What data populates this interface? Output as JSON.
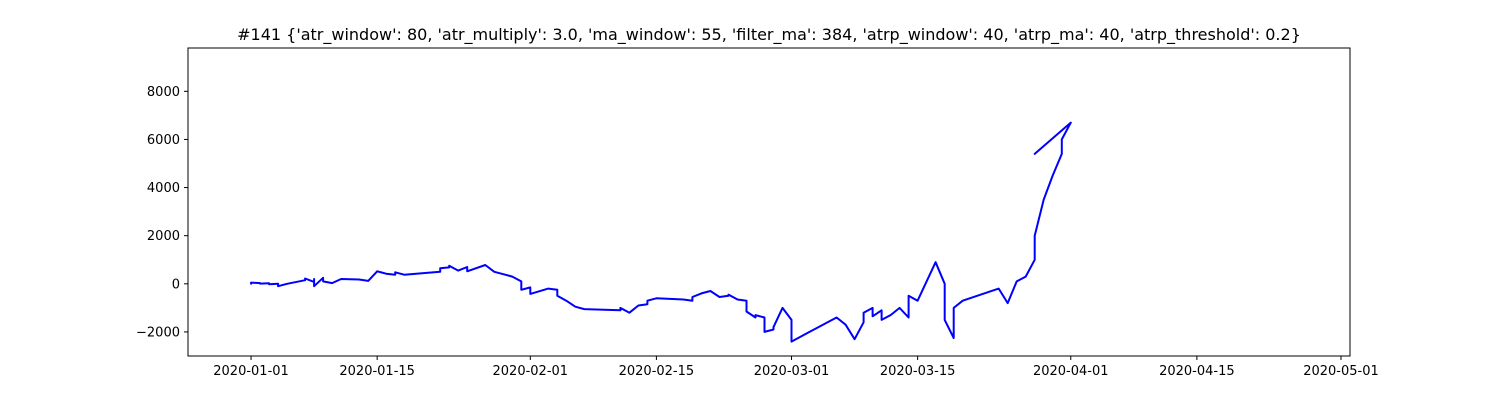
{
  "chart_data": {
    "type": "line",
    "title": "#141 {'atr_window': 80, 'atr_multiply': 3.0, 'ma_window': 55, 'filter_ma': 384, 'atrp_window': 40, 'atrp_ma': 40, 'atrp_threshold': 0.2}",
    "xlabel": "",
    "ylabel": "",
    "x_axis_type": "date",
    "xlim": [
      "2019-12-25",
      "2020-05-02"
    ],
    "ylim": [
      -3000,
      9800
    ],
    "grid": false,
    "legend": "none",
    "x_ticks": [
      "2020-01-01",
      "2020-01-15",
      "2020-02-01",
      "2020-02-15",
      "2020-03-01",
      "2020-03-15",
      "2020-04-01",
      "2020-04-15",
      "2020-05-01"
    ],
    "y_ticks": [
      -2000,
      0,
      2000,
      4000,
      6000,
      8000
    ],
    "y_tick_labels": [
      "−2000",
      "0",
      "2000",
      "4000",
      "6000",
      "8000"
    ],
    "series": [
      {
        "color": "#0000ff",
        "points": [
          [
            "2020-01-01",
            0
          ],
          [
            "2020-01-01",
            50
          ],
          [
            "2020-01-02",
            30
          ],
          [
            "2020-01-02",
            10
          ],
          [
            "2020-01-03",
            20
          ],
          [
            "2020-01-03",
            -20
          ],
          [
            "2020-01-04",
            0
          ],
          [
            "2020-01-04",
            -100
          ],
          [
            "2020-01-05",
            0
          ],
          [
            "2020-01-07",
            150
          ],
          [
            "2020-01-07",
            220
          ],
          [
            "2020-01-08",
            80
          ],
          [
            "2020-01-08",
            200
          ],
          [
            "2020-01-08",
            -100
          ],
          [
            "2020-01-09",
            250
          ],
          [
            "2020-01-09",
            100
          ],
          [
            "2020-01-10",
            30
          ],
          [
            "2020-01-11",
            200
          ],
          [
            "2020-01-13",
            180
          ],
          [
            "2020-01-14",
            120
          ],
          [
            "2020-01-15",
            520
          ],
          [
            "2020-01-16",
            420
          ],
          [
            "2020-01-17",
            380
          ],
          [
            "2020-01-17",
            480
          ],
          [
            "2020-01-18",
            380
          ],
          [
            "2020-01-22",
            500
          ],
          [
            "2020-01-22",
            650
          ],
          [
            "2020-01-23",
            680
          ],
          [
            "2020-01-23",
            750
          ],
          [
            "2020-01-24",
            550
          ],
          [
            "2020-01-25",
            700
          ],
          [
            "2020-01-25",
            520
          ],
          [
            "2020-01-27",
            780
          ],
          [
            "2020-01-28",
            500
          ],
          [
            "2020-01-29",
            400
          ],
          [
            "2020-01-30",
            300
          ],
          [
            "2020-01-31",
            100
          ],
          [
            "2020-01-31",
            -250
          ],
          [
            "2020-02-01",
            -150
          ],
          [
            "2020-02-01",
            -420
          ],
          [
            "2020-02-03",
            -200
          ],
          [
            "2020-02-04",
            -250
          ],
          [
            "2020-02-04",
            -500
          ],
          [
            "2020-02-05",
            -700
          ],
          [
            "2020-02-06",
            -950
          ],
          [
            "2020-02-07",
            -1050
          ],
          [
            "2020-02-11",
            -1100
          ],
          [
            "2020-02-11",
            -1000
          ],
          [
            "2020-02-12",
            -1200
          ],
          [
            "2020-02-13",
            -900
          ],
          [
            "2020-02-14",
            -850
          ],
          [
            "2020-02-14",
            -700
          ],
          [
            "2020-02-15",
            -600
          ],
          [
            "2020-02-18",
            -650
          ],
          [
            "2020-02-19",
            -700
          ],
          [
            "2020-02-19",
            -550
          ],
          [
            "2020-02-20",
            -400
          ],
          [
            "2020-02-21",
            -300
          ],
          [
            "2020-02-22",
            -550
          ],
          [
            "2020-02-23",
            -500
          ],
          [
            "2020-02-23",
            -450
          ],
          [
            "2020-02-24",
            -650
          ],
          [
            "2020-02-25",
            -700
          ],
          [
            "2020-02-25",
            -1150
          ],
          [
            "2020-02-26",
            -1400
          ],
          [
            "2020-02-26",
            -1300
          ],
          [
            "2020-02-27",
            -1400
          ],
          [
            "2020-02-27",
            -2000
          ],
          [
            "2020-02-28",
            -1900
          ],
          [
            "2020-02-28",
            -1800
          ],
          [
            "2020-02-29",
            -1000
          ],
          [
            "2020-03-01",
            -1500
          ],
          [
            "2020-03-01",
            -2400
          ],
          [
            "2020-03-03",
            -2000
          ],
          [
            "2020-03-04",
            -1800
          ],
          [
            "2020-03-05",
            -1600
          ],
          [
            "2020-03-06",
            -1400
          ],
          [
            "2020-03-07",
            -1700
          ],
          [
            "2020-03-08",
            -2300
          ],
          [
            "2020-03-09",
            -1600
          ],
          [
            "2020-03-09",
            -1200
          ],
          [
            "2020-03-10",
            -1000
          ],
          [
            "2020-03-10",
            -1350
          ],
          [
            "2020-03-11",
            -1100
          ],
          [
            "2020-03-11",
            -1500
          ],
          [
            "2020-03-12",
            -1300
          ],
          [
            "2020-03-13",
            -1000
          ],
          [
            "2020-03-14",
            -1400
          ],
          [
            "2020-03-14",
            -500
          ],
          [
            "2020-03-15",
            -700
          ],
          [
            "2020-03-17",
            900
          ],
          [
            "2020-03-18",
            0
          ],
          [
            "2020-03-18",
            -1500
          ],
          [
            "2020-03-19",
            -2250
          ],
          [
            "2020-03-19",
            -1000
          ],
          [
            "2020-03-20",
            -700
          ],
          [
            "2020-03-24",
            -200
          ],
          [
            "2020-03-25",
            -800
          ],
          [
            "2020-03-26",
            100
          ],
          [
            "2020-03-27",
            300
          ],
          [
            "2020-03-28",
            1000
          ],
          [
            "2020-03-28",
            2000
          ],
          [
            "2020-03-29",
            3500
          ],
          [
            "2020-03-30",
            4500
          ],
          [
            "2020-03-31",
            5400
          ],
          [
            "2020-03-31",
            6000
          ],
          [
            "2020-04-01",
            6700
          ],
          [
            "2020-03-28",
            5400
          ]
        ]
      }
    ]
  }
}
